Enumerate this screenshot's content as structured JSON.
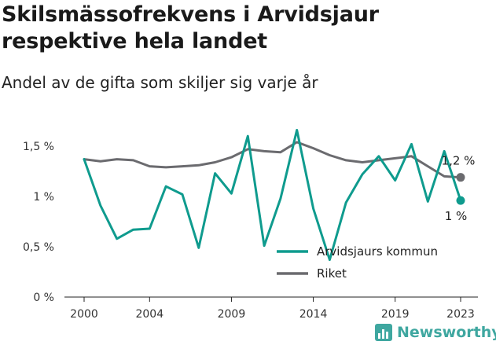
{
  "title": "Skilsmässofrekvens i Arvidsjaur respektive hela landet",
  "subtitle": "Andel av de gifta som skiljer sig varje år",
  "brand": {
    "name": "Newsworthy",
    "icon": "newsworthy-logo-icon",
    "color": "#3fa7a0"
  },
  "chart_data": {
    "type": "line",
    "x": [
      2000,
      2001,
      2002,
      2003,
      2004,
      2005,
      2006,
      2007,
      2008,
      2009,
      2010,
      2011,
      2012,
      2013,
      2014,
      2015,
      2016,
      2017,
      2018,
      2019,
      2020,
      2021,
      2022,
      2023
    ],
    "x_ticks": [
      {
        "value": 2000,
        "label": "2000"
      },
      {
        "value": 2004,
        "label": "2004"
      },
      {
        "value": 2009,
        "label": "2009"
      },
      {
        "value": 2014,
        "label": "2014"
      },
      {
        "value": 2019,
        "label": "2019"
      },
      {
        "value": 2023,
        "label": "2023"
      }
    ],
    "y_ticks": [
      {
        "value": 0,
        "label": "0 %"
      },
      {
        "value": 0.5,
        "label": "0,5 %"
      },
      {
        "value": 1,
        "label": "1 %"
      },
      {
        "value": 1.5,
        "label": "1,5 %"
      }
    ],
    "ylim": [
      0,
      1.5
    ],
    "xlim": [
      2000,
      2023
    ],
    "grid": false,
    "legend_position": "bottom-right",
    "series": [
      {
        "name": "Arvidsjaurs kommun",
        "color": "#0f9b8e",
        "values": [
          1.37,
          0.91,
          0.58,
          0.67,
          0.68,
          1.1,
          1.02,
          0.49,
          1.23,
          1.03,
          1.6,
          0.51,
          0.98,
          1.66,
          0.88,
          0.37,
          0.94,
          1.22,
          1.4,
          1.16,
          1.52,
          0.95,
          1.45,
          0.96
        ],
        "end_label": "1 %"
      },
      {
        "name": "Riket",
        "color": "#6b6b6f",
        "values": [
          1.37,
          1.35,
          1.37,
          1.36,
          1.3,
          1.29,
          1.3,
          1.31,
          1.34,
          1.39,
          1.47,
          1.45,
          1.44,
          1.54,
          1.48,
          1.41,
          1.36,
          1.34,
          1.36,
          1.38,
          1.4,
          1.3,
          1.2,
          1.19
        ],
        "end_label": "1,2 %"
      }
    ]
  }
}
